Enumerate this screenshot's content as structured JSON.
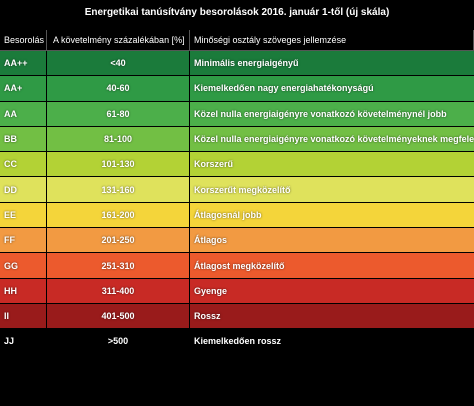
{
  "title": "Energetikai tanúsítvány besorolások 2016. január 1-től (új skála)",
  "table": {
    "header": [
      "Besorolás",
      "A követelmény százalékában [%]",
      "Minőségi osztály szöveges jellemzése"
    ],
    "rows": [
      [
        "AA++",
        "<40",
        "Minimális energiaigényű"
      ],
      [
        "AA+",
        "40-60",
        "Kiemelkedően nagy energiahatékonyságú"
      ],
      [
        "AA",
        "61-80",
        "Közel nulla energiaigényre vonatkozó követelménynél jobb"
      ],
      [
        "BB",
        "81-100",
        "Közel nulla energiaigényre vonatkozó követelményeknek megfelelő"
      ],
      [
        "CC",
        "101-130",
        "Korszerű"
      ],
      [
        "DD",
        "131-160",
        "Korszerűt megközelítő"
      ],
      [
        "EE",
        "161-200",
        "Átlagosnál jobb"
      ],
      [
        "FF",
        "201-250",
        "Átlagos"
      ],
      [
        "GG",
        "251-310",
        "Átlagost megközelítő"
      ],
      [
        "HH",
        "311-400",
        "Gyenge"
      ],
      [
        "II",
        "401-500",
        "Rossz"
      ],
      [
        "JJ",
        ">500",
        "Kiemelkedően rossz"
      ]
    ]
  }
}
